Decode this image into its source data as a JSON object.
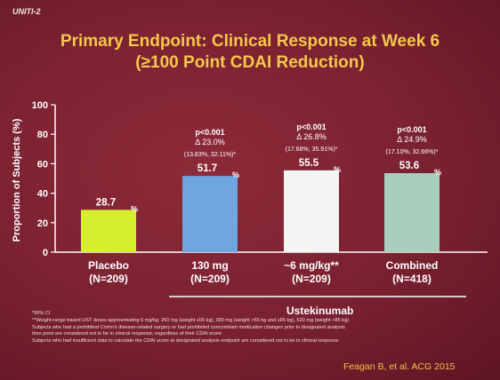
{
  "header": {
    "tag": "UNITI-2",
    "title_line1": "Primary Endpoint: Clinical Response at Week 6",
    "title_line2": "(≥100 Point CDAI Reduction)"
  },
  "chart_data": {
    "type": "bar",
    "ylabel": "Proportion of Subjects (%)",
    "ylim": [
      0,
      100
    ],
    "yticks": [
      0,
      20,
      40,
      60,
      80,
      100
    ],
    "grid": false,
    "categories": [
      {
        "name": "Placebo",
        "n": "(N=209)"
      },
      {
        "name": "130 mg",
        "n": "(N=209)"
      },
      {
        "name": "~6 mg/kg**",
        "n": "(N=209)"
      },
      {
        "name": "Combined",
        "n": "(N=418)"
      }
    ],
    "values": [
      28.7,
      51.7,
      55.5,
      53.6
    ],
    "value_labels": [
      "28.7",
      "51.7",
      "55.5",
      "53.6"
    ],
    "unit_label": "%",
    "bar_colors": [
      "#d4ee2e",
      "#6ea6e0",
      "#f4f4f2",
      "#a8cfbd"
    ],
    "annotations": [
      null,
      {
        "p": "p<0.001",
        "delta": "Δ 23.0%",
        "ci": "(13.83%, 32.11%)*"
      },
      {
        "p": "p<0.001",
        "delta": "Δ 26.8%",
        "ci": "(17.68%, 35.91%)*"
      },
      {
        "p": "p<0.001",
        "delta": "Δ 24.9%",
        "ci": "(17.10%, 32.66%)*"
      }
    ],
    "group_label": "Ustekinumab"
  },
  "footnotes": [
    "*95% CI",
    "**Weight-range based UST doses approximating 6 mg/kg: 260 mg (weight ≤55 kg), 390 mg (weight >55 kg and ≤85 kg), 520 mg (weight >85 kg)",
    "Subjects who had a prohibited Crohn's disease-related surgery or had prohibited concomitant medication changes prior to designated analysis",
    "time point are considered not to be in clinical response, regardless of their CDAI score",
    "Subjects who had insufficient data to calculate the CDAI score at designated analysis endpoint are considered not to be in clinical response"
  ],
  "citation": "Feagan B, et al. ACG 2015"
}
